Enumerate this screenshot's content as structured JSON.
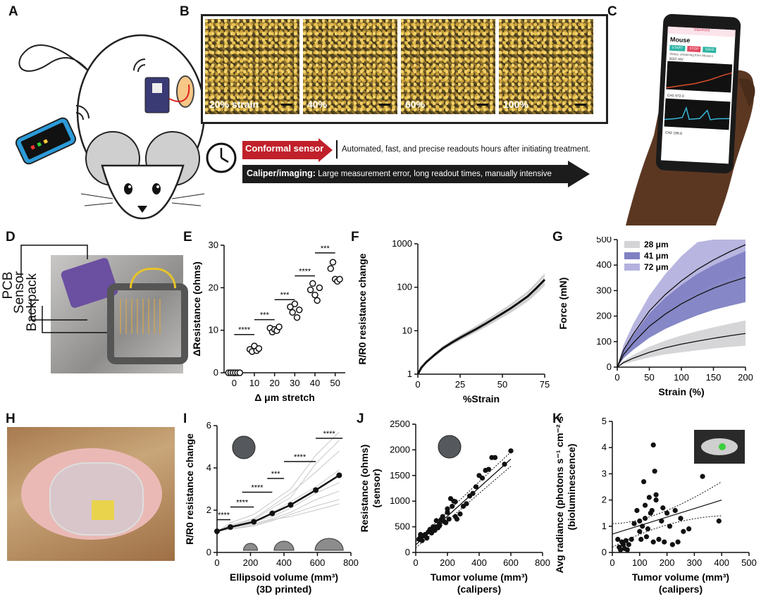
{
  "panels": {
    "A": "A",
    "B": "B",
    "C": "C",
    "D": "D",
    "E": "E",
    "F": "F",
    "G": "G",
    "H": "H",
    "I": "I",
    "J": "J",
    "K": "K"
  },
  "panel_b": {
    "strains": [
      "20% strain",
      "40%",
      "60%",
      "100%"
    ]
  },
  "timeline": {
    "sensor_label": "Conformal sensor",
    "sensor_text": "Automated, fast, and precise readouts hours after initiating treatment.",
    "caliper_label": "Caliper/imaging:",
    "caliper_text": "Large measurement error, long readout times, manually intensive"
  },
  "phone_app": {
    "header": "Stanford",
    "title": "Mouse",
    "buttons": [
      "START",
      "STOP",
      "SAVE"
    ],
    "status": "Status: streaming from Mouse1",
    "reading1": "3157 mV",
    "reading2": "CH1 572.0",
    "reading3": "CH2 196.8",
    "colors": {
      "start": "#2bb3a3",
      "stop": "#e2445c",
      "save": "#2bb3a3",
      "accent": "#d7476b"
    }
  },
  "panel_d": {
    "labels": [
      "PCB",
      "Sensor",
      "Backpack"
    ]
  },
  "chart_data": [
    {
      "id": "E",
      "type": "scatter",
      "xlabel": "Δ μm stretch",
      "ylabel": "ΔResistance (ohms)",
      "xlim": [
        -5,
        55
      ],
      "ylim": [
        0,
        30
      ],
      "xticks": [
        0,
        10,
        20,
        30,
        40,
        50
      ],
      "yticks": [
        0,
        10,
        20,
        30
      ],
      "groups": [
        {
          "x": 0,
          "values": [
            0,
            0,
            0,
            0,
            0,
            0
          ]
        },
        {
          "x": 10,
          "values": [
            5.5,
            5.0,
            6.3,
            5.2,
            5.7
          ]
        },
        {
          "x": 20,
          "values": [
            10.5,
            9.6,
            10.2,
            9.9,
            10.8
          ]
        },
        {
          "x": 30,
          "values": [
            15.5,
            14.2,
            16.2,
            13.0,
            14.8
          ]
        },
        {
          "x": 40,
          "values": [
            19.5,
            21.0,
            18.3,
            17.0,
            20.0
          ]
        },
        {
          "x": 50,
          "values": [
            24.5,
            26.0,
            22.0,
            21.5,
            22.0
          ]
        }
      ],
      "significance": [
        {
          "from": 0,
          "to": 10,
          "y": 9,
          "label": "****"
        },
        {
          "from": 10,
          "to": 20,
          "y": 12.5,
          "label": "***"
        },
        {
          "from": 20,
          "to": 30,
          "y": 17.2,
          "label": "***"
        },
        {
          "from": 30,
          "to": 40,
          "y": 22.8,
          "label": "****"
        },
        {
          "from": 40,
          "to": 50,
          "y": 28.2,
          "label": "***"
        }
      ]
    },
    {
      "id": "F",
      "type": "line",
      "xlabel": "%Strain",
      "ylabel": "R/R0 resistance change",
      "scale_y": "log",
      "xlim": [
        0,
        75
      ],
      "ylim": [
        1,
        1000
      ],
      "xticks": [
        0,
        25,
        50,
        75
      ],
      "yticks": [
        1,
        10,
        100,
        1000
      ],
      "mean": {
        "x": [
          0,
          2,
          5,
          10,
          15,
          20,
          25,
          30,
          35,
          40,
          45,
          50,
          55,
          60,
          65,
          70,
          75
        ],
        "y": [
          1,
          1.4,
          1.9,
          2.8,
          4.0,
          5.3,
          6.9,
          8.8,
          11.2,
          14.5,
          19,
          25,
          33,
          45,
          62,
          95,
          150
        ]
      },
      "individual_scale_factors": [
        0.6,
        0.75,
        0.85,
        1.1,
        1.25,
        1.4,
        0.7,
        1.3
      ]
    },
    {
      "id": "G",
      "type": "area",
      "xlabel": "Strain (%)",
      "ylabel": "Force (mN)",
      "xlim": [
        0,
        200
      ],
      "ylim": [
        0,
        500
      ],
      "xticks": [
        0,
        50,
        100,
        150,
        200
      ],
      "yticks": [
        0,
        100,
        200,
        300,
        400,
        500
      ],
      "legend_position": "top-left",
      "x": [
        0,
        10,
        25,
        50,
        75,
        100,
        125,
        150,
        175,
        200
      ],
      "series": [
        {
          "name": "28 μm",
          "color": "#d4d4d6",
          "mean": [
            0,
            18,
            35,
            58,
            76,
            90,
            102,
            113,
            123,
            132
          ],
          "lower": [
            0,
            12,
            22,
            38,
            50,
            58,
            66,
            73,
            79,
            84
          ],
          "upper": [
            0,
            25,
            48,
            80,
            104,
            124,
            141,
            156,
            170,
            183
          ]
        },
        {
          "name": "41 μm",
          "color": "#8081c3",
          "mean": [
            0,
            50,
            95,
            160,
            208,
            248,
            281,
            309,
            332,
            352
          ],
          "lower": [
            0,
            35,
            68,
            115,
            150,
            178,
            203,
            224,
            240,
            255
          ],
          "upper": [
            0,
            66,
            125,
            210,
            272,
            322,
            365,
            400,
            428,
            455
          ]
        },
        {
          "name": "72 μm",
          "color": "#b4b1de",
          "mean": [
            0,
            68,
            130,
            220,
            285,
            338,
            383,
            420,
            452,
            480
          ],
          "lower": [
            0,
            50,
            95,
            165,
            215,
            258,
            295,
            325,
            350,
            372
          ],
          "upper": [
            0,
            88,
            170,
            280,
            365,
            435,
            490,
            500,
            500,
            500
          ]
        }
      ]
    },
    {
      "id": "I",
      "type": "line",
      "xlabel": "Ellipsoid volume (mm³)",
      "xlabel2": "(3D printed)",
      "ylabel": "R/R0 resistance change",
      "xlim": [
        0,
        800
      ],
      "ylim": [
        0,
        6
      ],
      "xticks": [
        0,
        200,
        400,
        600,
        800
      ],
      "yticks": [
        0,
        2,
        4,
        6
      ],
      "mean": {
        "x": [
          0,
          80,
          220,
          330,
          440,
          590,
          730
        ],
        "y": [
          1.0,
          1.2,
          1.45,
          1.85,
          2.25,
          2.95,
          3.65
        ]
      },
      "individual": [
        [
          1.0,
          1.1,
          1.25,
          1.5,
          1.8,
          2.2,
          2.5
        ],
        [
          1.0,
          1.15,
          1.35,
          1.6,
          1.9,
          2.5,
          2.9
        ],
        [
          1.0,
          1.2,
          1.4,
          1.9,
          2.4,
          3.1,
          3.9
        ],
        [
          1.0,
          1.3,
          1.6,
          2.2,
          2.8,
          3.8,
          4.8
        ],
        [
          1.0,
          1.25,
          1.55,
          2.1,
          2.6,
          4.2,
          5.3
        ],
        [
          1.0,
          1.4,
          1.8,
          2.4,
          3.0,
          4.6,
          5.7
        ],
        [
          1.0,
          1.15,
          1.45,
          1.7,
          2.1,
          2.8,
          3.3
        ],
        [
          1.0,
          1.1,
          1.3,
          1.55,
          1.7,
          2.0,
          2.3
        ]
      ],
      "significance": [
        {
          "from": 0,
          "to": 80,
          "y": 1.55,
          "label": "****"
        },
        {
          "from": 80,
          "to": 220,
          "y": 2.15,
          "label": "****"
        },
        {
          "from": 150,
          "to": 330,
          "y": 2.85,
          "label": "****"
        },
        {
          "from": 300,
          "to": 400,
          "y": 3.5,
          "label": "***"
        },
        {
          "from": 400,
          "to": 590,
          "y": 4.3,
          "label": "****"
        },
        {
          "from": 590,
          "to": 750,
          "y": 5.4,
          "label": "****"
        }
      ]
    },
    {
      "id": "J",
      "type": "scatter",
      "xlabel": "Tumor volume (mm³)",
      "xlabel2": "(calipers)",
      "ylabel": "Resistance (ohms)",
      "ylabel2": "(sensor)",
      "xlim": [
        0,
        800
      ],
      "ylim": [
        0,
        2500
      ],
      "xticks": [
        0,
        200,
        400,
        600,
        800
      ],
      "yticks": [
        0,
        500,
        1000,
        1500,
        2000,
        2500
      ],
      "x": [
        20,
        30,
        40,
        50,
        60,
        70,
        80,
        90,
        100,
        110,
        120,
        130,
        140,
        150,
        160,
        170,
        180,
        190,
        200,
        210,
        220,
        240,
        250,
        260,
        280,
        300,
        320,
        340,
        360,
        380,
        400,
        420,
        440,
        460,
        480,
        500,
        560,
        600,
        30,
        60,
        90,
        150,
        200,
        250,
        110,
        130,
        230
      ],
      "y": [
        260,
        300,
        230,
        330,
        350,
        280,
        400,
        420,
        380,
        460,
        430,
        500,
        480,
        520,
        640,
        700,
        600,
        580,
        780,
        650,
        1050,
        1000,
        700,
        650,
        750,
        900,
        950,
        1100,
        1150,
        1280,
        1500,
        1450,
        1600,
        1620,
        1850,
        1850,
        1720,
        1980,
        350,
        320,
        450,
        560,
        850,
        990,
        500,
        620,
        900
      ],
      "fit": {
        "x": [
          0,
          600
        ],
        "y": [
          150,
          1820
        ]
      }
    },
    {
      "id": "K",
      "type": "scatter",
      "xlabel": "Tumor volume (mm³)",
      "xlabel2": "(calipers)",
      "ylabel": "Avg radiance (photons s⁻¹ cm⁻² sr⁻¹)",
      "ylabel2": "(bioluminescence)",
      "xlim": [
        0,
        500
      ],
      "ylim": [
        0,
        5
      ],
      "xticks": [
        0,
        100,
        200,
        300,
        400,
        500
      ],
      "yticks": [
        0,
        1,
        2,
        3,
        4,
        5
      ],
      "x": [
        20,
        25,
        30,
        35,
        40,
        45,
        50,
        55,
        60,
        70,
        80,
        90,
        100,
        105,
        110,
        115,
        120,
        125,
        130,
        135,
        140,
        145,
        150,
        155,
        160,
        170,
        180,
        185,
        190,
        200,
        210,
        220,
        230,
        240,
        250,
        260,
        280,
        330,
        390,
        150,
        160,
        120,
        100
      ],
      "y": [
        0.5,
        0.2,
        0.1,
        0.4,
        0.3,
        0.15,
        0.45,
        0.1,
        0.3,
        0.5,
        1.1,
        1.6,
        0.8,
        0.5,
        1.0,
        2.7,
        1.3,
        0.6,
        0.9,
        2.1,
        1.5,
        1.6,
        4.1,
        3.1,
        2.2,
        0.5,
        1.2,
        1.7,
        0.4,
        1.5,
        1.0,
        0.3,
        1.6,
        0.4,
        1.3,
        0.8,
        0.9,
        2.9,
        1.2,
        0.4,
        2.0,
        1.8,
        1.2
      ],
      "fit": {
        "x": [
          0,
          400
        ],
        "y": [
          0.7,
          2.0
        ]
      }
    }
  ]
}
